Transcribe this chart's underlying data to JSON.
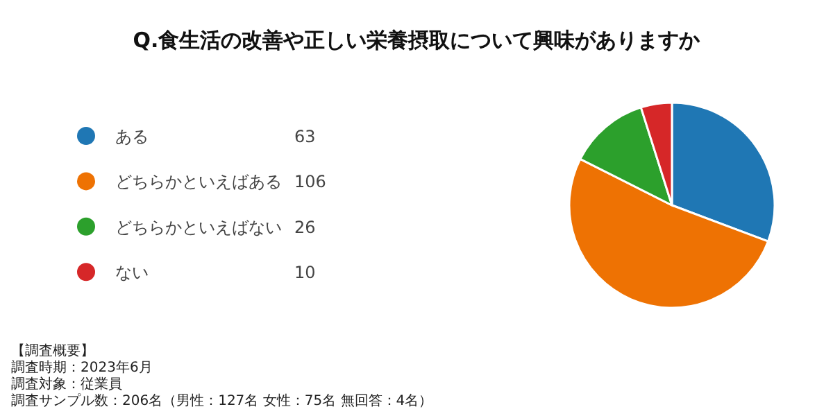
{
  "chart_data": {
    "type": "pie",
    "title": "Q.食生活の改善や正しい栄養摂取について興味がありますか",
    "categories": [
      "ある",
      "どちらかといえばある",
      "どちらかといえばない",
      "ない"
    ],
    "values": [
      63,
      106,
      26,
      10
    ],
    "colors": [
      "#1f77b4",
      "#ee7203",
      "#2ca02c",
      "#d62728"
    ],
    "data_labels": true,
    "legend": "left",
    "annotations": [
      "【調査概要】",
      "調査時期：2023年6月",
      "調査対象：従業員",
      "調査サンプル数：206名（男性：127名 女性：75名 無回答：4名）"
    ]
  }
}
